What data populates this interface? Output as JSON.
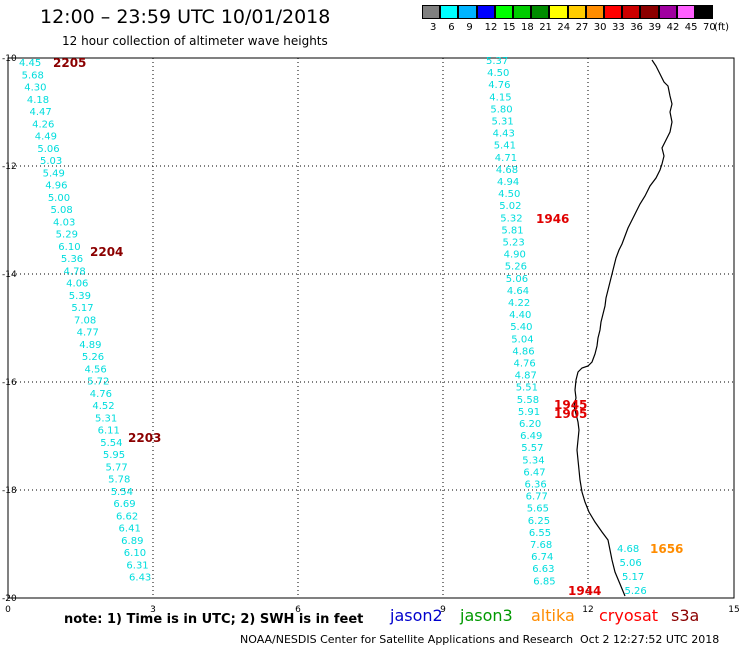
{
  "title": "12:00 – 23:59 UTC 10/01/2018",
  "subtitle": "12 hour collection of altimeter wave heights",
  "color_scale": {
    "unit": "(ft)",
    "bins": [
      {
        "label": "3",
        "color": "#808080"
      },
      {
        "label": "6",
        "color": "#00ffff"
      },
      {
        "label": "9",
        "color": "#00b4ff"
      },
      {
        "label": "12",
        "color": "#0000ff"
      },
      {
        "label": "15",
        "color": "#00ff00"
      },
      {
        "label": "18",
        "color": "#00cc00"
      },
      {
        "label": "21",
        "color": "#008c00"
      },
      {
        "label": "24",
        "color": "#ffff00"
      },
      {
        "label": "27",
        "color": "#ffcc00"
      },
      {
        "label": "30",
        "color": "#ff8c00"
      },
      {
        "label": "33",
        "color": "#ff0000"
      },
      {
        "label": "36",
        "color": "#cc0000"
      },
      {
        "label": "39",
        "color": "#8c0000"
      },
      {
        "label": "42",
        "color": "#a000a0"
      },
      {
        "label": "45",
        "color": "#ff60ff"
      },
      {
        "label": "70",
        "color": "#000000"
      }
    ]
  },
  "map": {
    "lat_ticks": [
      "-10",
      "-12",
      "-14",
      "-16",
      "-18",
      "-20"
    ],
    "lon_ticks": [
      "0",
      "3",
      "6",
      "9",
      "12",
      "15"
    ]
  },
  "tracks": [
    {
      "color": "#00dddd",
      "values": [
        "4.45",
        "5.68",
        "4.30",
        "4.18",
        "4.47",
        "4.26",
        "4.49",
        "5.06",
        "5.03",
        "5.49",
        "4.96",
        "5.00",
        "5.08",
        "4.03",
        "5.29",
        "6.10",
        "5.36",
        "4.78",
        "4.06",
        "5.39",
        "5.17",
        "7.08",
        "4.77",
        "4.89",
        "5.26",
        "4.56",
        "5.72",
        "4.76",
        "4.52",
        "5.31",
        "6.11",
        "5.54",
        "5.95",
        "5.77",
        "5.78",
        "5.54",
        "6.69",
        "6.62",
        "6.41",
        "6.89",
        "6.10",
        "6.31",
        "6.43"
      ]
    },
    {
      "color": "#00dddd",
      "values": [
        "5.37",
        "4.50",
        "4.76",
        "4.15",
        "5.80",
        "5.31",
        "4.43",
        "5.41",
        "4.71",
        "4.68",
        "4.94",
        "4.50",
        "5.02",
        "5.32",
        "5.81",
        "5.23",
        "4.90",
        "5.26",
        "5.06",
        "4.64",
        "4.22",
        "4.40",
        "5.40",
        "5.04",
        "4.86",
        "4.76",
        "4.87",
        "5.51",
        "5.58",
        "5.91",
        "6.20",
        "6.49",
        "5.57",
        "5.34",
        "6.47",
        "6.36",
        "6.77",
        "5.65",
        "6.25",
        "6.55",
        "7.68",
        "6.74",
        "6.63",
        "6.85"
      ]
    },
    {
      "color": "#00dddd",
      "values": [
        "4.68",
        "5.06",
        "5.17",
        "5.26"
      ]
    }
  ],
  "time_labels": [
    {
      "text": "2205",
      "color": "#8b0000"
    },
    {
      "text": "2204",
      "color": "#8b0000"
    },
    {
      "text": "2203",
      "color": "#8b0000"
    },
    {
      "text": "1946",
      "color": "#e00000"
    },
    {
      "text": "1945",
      "color": "#e00000"
    },
    {
      "text": "1905",
      "color": "#e00000"
    },
    {
      "text": "1944",
      "color": "#e00000"
    },
    {
      "text": "1656",
      "color": "#ff8c00"
    }
  ],
  "note": "note:  1) Time is in UTC;  2) SWH is in feet",
  "satellites": [
    {
      "name": "jason2",
      "color": "#0000cc"
    },
    {
      "name": "jason3",
      "color": "#009900"
    },
    {
      "name": "altika",
      "color": "#ff8c00"
    },
    {
      "name": "cryosat",
      "color": "#ff0000"
    },
    {
      "name": "s3a",
      "color": "#8b0000"
    }
  ],
  "credit": "NOAA/NESDIS Center for Satellite Applications and Research",
  "timestamp": "Oct  2 12:27:52 UTC 2018"
}
